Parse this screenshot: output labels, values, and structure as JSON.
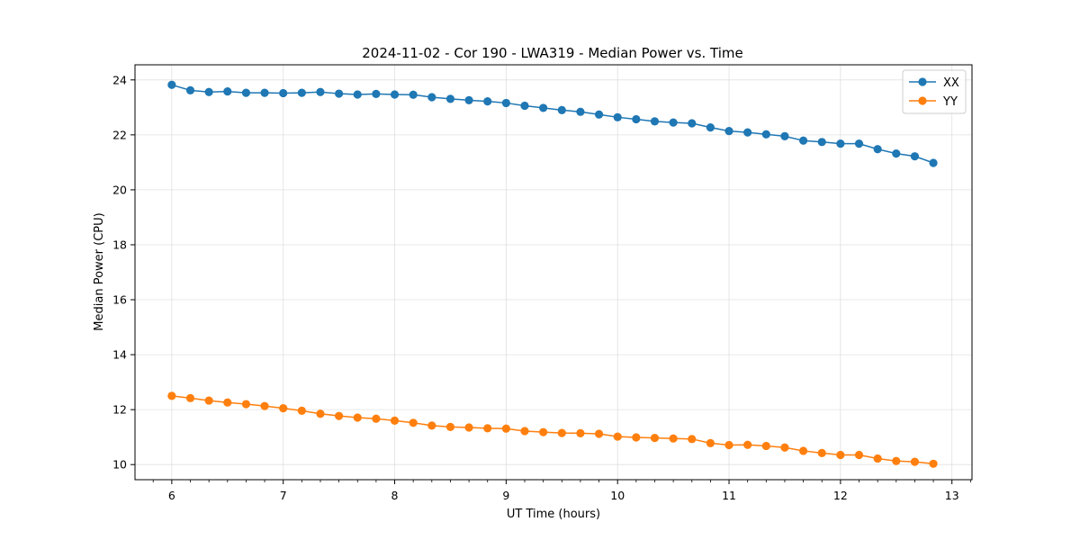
{
  "chart_data": {
    "type": "line",
    "title": "2024-11-02 - Cor 190 - LWA319 - Median Power vs. Time",
    "xlabel": "UT Time (hours)",
    "ylabel": "Median Power (CPU)",
    "xlim": [
      5.67,
      13.18
    ],
    "ylim": [
      9.45,
      24.55
    ],
    "xticks": [
      6,
      7,
      8,
      9,
      10,
      11,
      12,
      13
    ],
    "yticks": [
      10,
      12,
      14,
      16,
      18,
      20,
      22,
      24
    ],
    "grid": true,
    "legend_position": "top-right",
    "x": [
      6.0,
      6.1667,
      6.3333,
      6.5,
      6.6667,
      6.8333,
      7.0,
      7.1667,
      7.3333,
      7.5,
      7.6667,
      7.8333,
      8.0,
      8.1667,
      8.3333,
      8.5,
      8.6667,
      8.8333,
      9.0,
      9.1667,
      9.3333,
      9.5,
      9.6667,
      9.8333,
      10.0,
      10.1667,
      10.3333,
      10.5,
      10.6667,
      10.8333,
      11.0,
      11.1667,
      11.3333,
      11.5,
      11.6667,
      11.8333,
      12.0,
      12.1667,
      12.3333,
      12.5,
      12.6667,
      12.8333
    ],
    "series": [
      {
        "name": "XX",
        "color": "#1f77b4",
        "values": [
          23.82,
          23.62,
          23.56,
          23.58,
          23.53,
          23.53,
          23.52,
          23.53,
          23.56,
          23.5,
          23.47,
          23.49,
          23.47,
          23.46,
          23.37,
          23.31,
          23.26,
          23.22,
          23.16,
          23.06,
          22.98,
          22.9,
          22.84,
          22.74,
          22.64,
          22.57,
          22.49,
          22.45,
          22.42,
          22.27,
          22.14,
          22.09,
          22.02,
          21.95,
          21.79,
          21.74,
          21.68,
          21.68,
          21.48,
          21.32,
          21.22,
          20.98
        ]
      },
      {
        "name": "YY",
        "color": "#ff7f0e",
        "values": [
          12.5,
          12.42,
          12.33,
          12.26,
          12.2,
          12.13,
          12.05,
          11.96,
          11.85,
          11.77,
          11.71,
          11.67,
          11.6,
          11.52,
          11.42,
          11.37,
          11.35,
          11.32,
          11.31,
          11.22,
          11.18,
          11.15,
          11.14,
          11.12,
          11.02,
          10.99,
          10.97,
          10.95,
          10.93,
          10.78,
          10.71,
          10.72,
          10.68,
          10.62,
          10.5,
          10.42,
          10.35,
          10.35,
          10.22,
          10.13,
          10.1,
          10.03
        ]
      }
    ]
  }
}
